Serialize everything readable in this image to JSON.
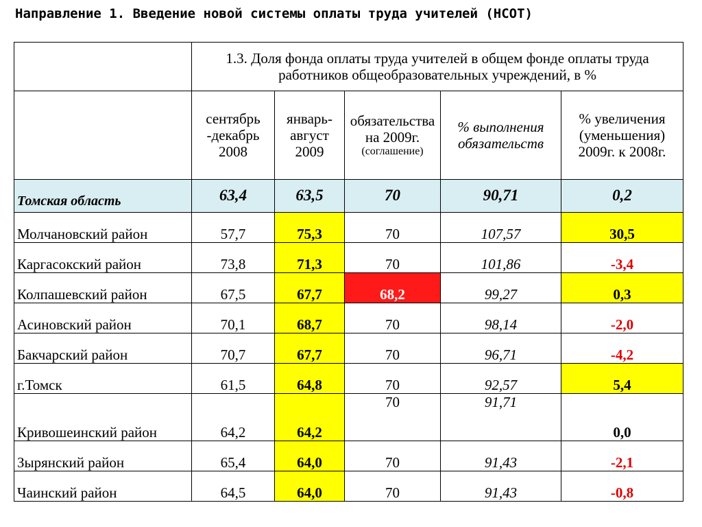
{
  "title": "Направление 1. Введение новой системы оплаты труда учителей (НСОТ)",
  "section_title": "1.3. Доля фонда оплаты труда учителей в общем фонде оплаты труда работников общеобразовательных учреждений, в %",
  "headers": {
    "col1": "сентябрь -декабрь 2008",
    "col2": "январь-август 2009",
    "col3": "обязательства на 2009г.",
    "col3_note": "(соглашение)",
    "col4": "% выполнения обязательств",
    "col5": "% увеличения (уменьшения) 2009г. к 2008г."
  },
  "region": {
    "name": "Томская область",
    "c1": "63,4",
    "c2": "63,5",
    "c3": "70",
    "c4": "90,71",
    "c5": "0,2"
  },
  "rows": [
    {
      "name": "Молчановский район",
      "c1": "57,7",
      "c2": "75,3",
      "c3": "70",
      "c4": "107,57",
      "c5": "30,5"
    },
    {
      "name": "Каргасокский район",
      "c1": "73,8",
      "c2": "71,3",
      "c3": "70",
      "c4": "101,86",
      "c5": "-3,4"
    },
    {
      "name": "Колпашевский район",
      "c1": "67,5",
      "c2": "67,7",
      "c3": "68,2",
      "c4": "99,27",
      "c5": "0,3"
    },
    {
      "name": "Асиновский район",
      "c1": "70,1",
      "c2": "68,7",
      "c3": "70",
      "c4": "98,14",
      "c5": "-2,0"
    },
    {
      "name": "Бакчарский район",
      "c1": "70,7",
      "c2": "67,7",
      "c3": "70",
      "c4": "96,71",
      "c5": "-4,2"
    },
    {
      "name": "г.Томск",
      "c1": "61,5",
      "c2": "64,8",
      "c3": "70",
      "c4": "92,57",
      "c5": "5,4"
    },
    {
      "name": "Кривошеинский район",
      "c1": "64,2",
      "c2": "64,2",
      "c3": "70",
      "c4": "91,71",
      "c5": "0,0"
    },
    {
      "name": "Зырянский район",
      "c1": "65,4",
      "c2": "64,0",
      "c3": "70",
      "c4": "91,43",
      "c5": "-2,1"
    },
    {
      "name": "Чаинский район",
      "c1": "64,5",
      "c2": "64,0",
      "c3": "70",
      "c4": "91,43",
      "c5": "-0,8"
    }
  ],
  "colors": {
    "region_bg": "#d9eef2",
    "highlight_yellow": "#ffff00",
    "highlight_red": "#ff1a1a",
    "negative_text": "#e00000"
  }
}
